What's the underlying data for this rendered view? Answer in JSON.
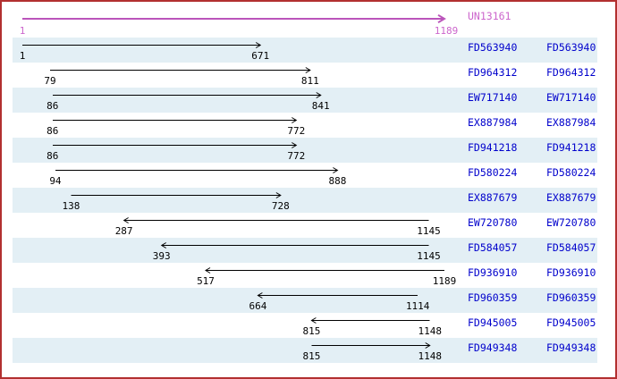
{
  "reference": {
    "id": "UN13161",
    "start": 1,
    "end": 1189,
    "start_label": "1",
    "end_label": "1189",
    "direction": "right"
  },
  "axis": {
    "min": 1,
    "max": 1189
  },
  "alignments": [
    {
      "id": "FD563940",
      "start": 1,
      "end": 671,
      "direction": "right"
    },
    {
      "id": "FD964312",
      "start": 79,
      "end": 811,
      "direction": "right"
    },
    {
      "id": "EW717140",
      "start": 86,
      "end": 841,
      "direction": "right"
    },
    {
      "id": "EX887984",
      "start": 86,
      "end": 772,
      "direction": "right"
    },
    {
      "id": "FD941218",
      "start": 86,
      "end": 772,
      "direction": "right"
    },
    {
      "id": "FD580224",
      "start": 94,
      "end": 888,
      "direction": "right"
    },
    {
      "id": "EX887679",
      "start": 138,
      "end": 728,
      "direction": "right"
    },
    {
      "id": "EW720780",
      "start": 287,
      "end": 1145,
      "direction": "left"
    },
    {
      "id": "FD584057",
      "start": 393,
      "end": 1145,
      "direction": "left"
    },
    {
      "id": "FD936910",
      "start": 517,
      "end": 1189,
      "direction": "left"
    },
    {
      "id": "FD960359",
      "start": 664,
      "end": 1114,
      "direction": "left"
    },
    {
      "id": "FD945005",
      "start": 815,
      "end": 1148,
      "direction": "left"
    },
    {
      "id": "FD949348",
      "start": 815,
      "end": 1148,
      "direction": "right"
    }
  ],
  "colors": {
    "border": "#b23030",
    "reference_arrow": "#bb55bb",
    "reference_text": "#cc66cc",
    "accession_text": "#0000cc",
    "row_stripe": "#e3eff5",
    "alignment_arrow": "#000000",
    "background": "#ffffff"
  }
}
